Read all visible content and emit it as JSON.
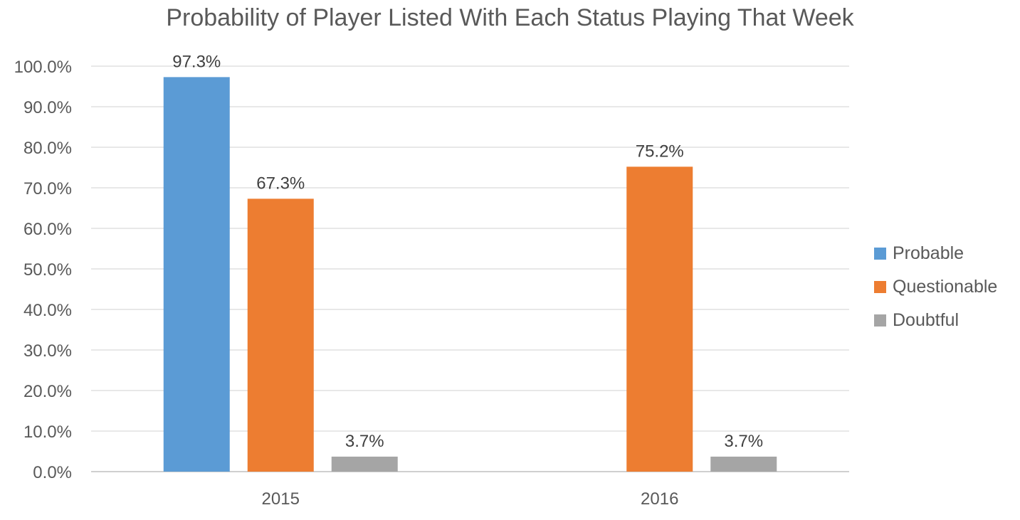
{
  "chart_data": {
    "type": "bar",
    "title": "Probability of Player Listed With Each Status Playing That Week",
    "xlabel": "",
    "ylabel": "",
    "categories": [
      "2015",
      "2016"
    ],
    "series": [
      {
        "name": "Probable",
        "color": "#5B9BD5",
        "values": [
          0.973,
          null
        ],
        "labels": [
          "97.3%",
          null
        ]
      },
      {
        "name": "Questionable",
        "color": "#ED7D31",
        "values": [
          0.673,
          0.752
        ],
        "labels": [
          "67.3%",
          "75.2%"
        ]
      },
      {
        "name": "Doubtful",
        "color": "#A5A5A5",
        "values": [
          0.037,
          0.037
        ],
        "labels": [
          "3.7%",
          "3.7%"
        ]
      }
    ],
    "ylim": [
      0,
      1.0
    ],
    "yticks": [
      "0.0%",
      "10.0%",
      "20.0%",
      "30.0%",
      "40.0%",
      "50.0%",
      "60.0%",
      "70.0%",
      "80.0%",
      "90.0%",
      "100.0%"
    ],
    "grid": true,
    "legend_position": "right"
  }
}
